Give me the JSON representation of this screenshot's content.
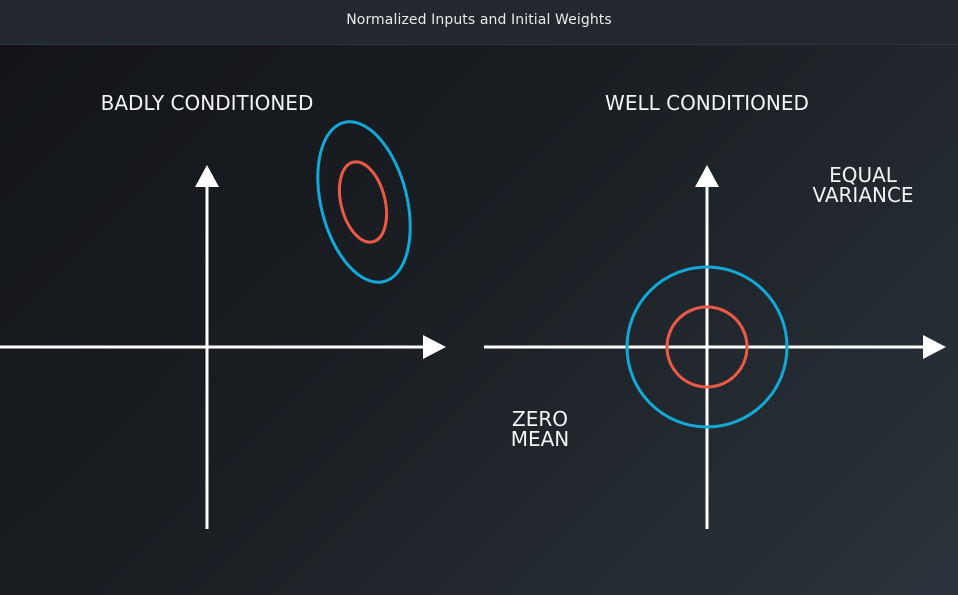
{
  "window": {
    "title": "Normalized Inputs and Initial Weights"
  },
  "diagram": {
    "left_panel": {
      "heading": "BADLY CONDITIONED"
    },
    "right_panel": {
      "heading": "WELL CONDITIONED",
      "note_top_line1": "EQUAL",
      "note_top_line2": "VARIANCE",
      "note_bottom_line1": "ZERO",
      "note_bottom_line2": "MEAN"
    },
    "colors": {
      "axis": "#ffffff",
      "outer_contour": "#12a9d6",
      "inner_contour": "#ec5a47"
    }
  }
}
